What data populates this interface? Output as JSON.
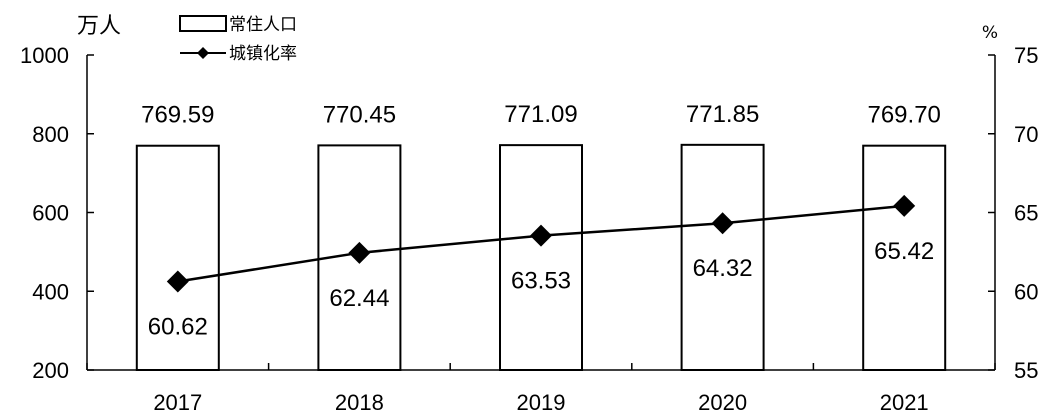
{
  "chart_data": {
    "type": "bar",
    "categories": [
      "2017",
      "2018",
      "2019",
      "2020",
      "2021"
    ],
    "series": [
      {
        "name": "常住人口",
        "type": "bar",
        "axis": "left",
        "values": [
          769.59,
          770.45,
          771.09,
          771.85,
          769.7
        ]
      },
      {
        "name": "城镇化率",
        "type": "line",
        "axis": "right",
        "marker": "diamond",
        "values": [
          60.62,
          62.44,
          63.53,
          64.32,
          65.42
        ]
      }
    ],
    "data_labels": {
      "bars": [
        "769.59",
        "770.45",
        "771.09",
        "771.85",
        "769.70"
      ],
      "line": [
        "60.62",
        "62.44",
        "63.53",
        "64.32",
        "65.42"
      ]
    },
    "y_left": {
      "unit": "万人",
      "range": [
        200,
        1000
      ],
      "ticks": [
        "200",
        "400",
        "600",
        "800",
        "1000"
      ]
    },
    "y_right": {
      "unit": "%",
      "range": [
        55,
        75
      ],
      "ticks": [
        "55",
        "60",
        "65",
        "70",
        "75"
      ]
    },
    "grid": false,
    "legend_position": "top-left",
    "colors": {
      "bar_fill": "#ffffff",
      "bar_stroke": "#000000",
      "line": "#000000",
      "axis": "#000000"
    }
  }
}
